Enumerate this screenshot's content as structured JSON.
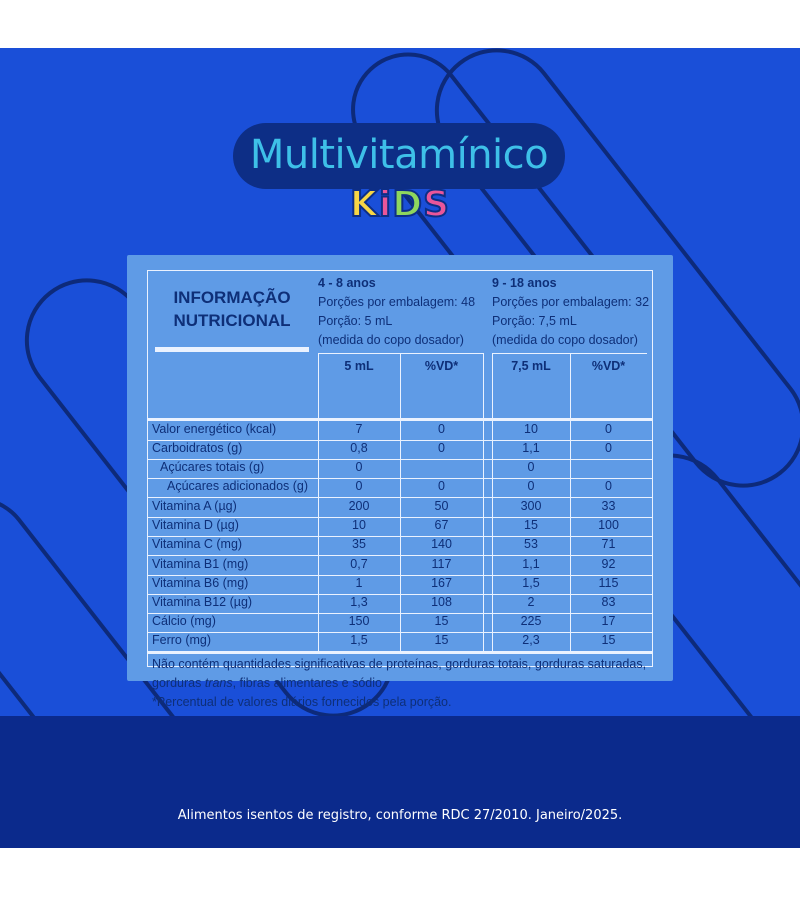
{
  "brand": {
    "title": "Multivitamínico",
    "kids_letters": [
      "K",
      "i",
      "D",
      "S"
    ],
    "kids_colors": [
      "#f7d646",
      "#e9569a",
      "#8ed65e",
      "#e9569a"
    ],
    "title_color": "#3ec0e8"
  },
  "table": {
    "heading_line1": "INFORMAÇÃO",
    "heading_line2": "NUTRICIONAL",
    "group_a": {
      "age": "4 - 8 anos",
      "portions": "Porções por embalagem: 48",
      "portion": "Porção: 5 mL",
      "measure": "(medida do copo dosador)",
      "col1": "5 mL",
      "col2": "%VD*"
    },
    "group_b": {
      "age": "9 - 18 anos",
      "portions": "Porções por embalagem: 32",
      "portion": "Porção: 7,5 mL",
      "measure": "(medida do copo dosador)",
      "col1": "7,5 mL",
      "col2": "%VD*"
    },
    "rows": [
      {
        "label": "Valor energético (kcal)",
        "a1": "7",
        "a2": "0",
        "b1": "10",
        "b2": "0"
      },
      {
        "label": "Carboidratos (g)",
        "a1": "0,8",
        "a2": "0",
        "b1": "1,1",
        "b2": "0"
      },
      {
        "label": "Açúcares totais (g)",
        "a1": "0",
        "a2": "",
        "b1": "0",
        "b2": ""
      },
      {
        "label": "Açúcares adicionados (g)",
        "a1": "0",
        "a2": "0",
        "b1": "0",
        "b2": "0"
      },
      {
        "label": "Vitamina A (µg)",
        "a1": "200",
        "a2": "50",
        "b1": "300",
        "b2": "33"
      },
      {
        "label": "Vitamina D (µg)",
        "a1": "10",
        "a2": "67",
        "b1": "15",
        "b2": "100"
      },
      {
        "label": "Vitamina C (mg)",
        "a1": "35",
        "a2": "140",
        "b1": "53",
        "b2": "71"
      },
      {
        "label": "Vitamina B1 (mg)",
        "a1": "0,7",
        "a2": "117",
        "b1": "1,1",
        "b2": "92"
      },
      {
        "label": "Vitamina B6 (mg)",
        "a1": "1",
        "a2": "167",
        "b1": "1,5",
        "b2": "115"
      },
      {
        "label": "Vitamina B12 (µg)",
        "a1": "1,3",
        "a2": "108",
        "b1": "2",
        "b2": "83"
      },
      {
        "label": "Cálcio (mg)",
        "a1": "150",
        "a2": "15",
        "b1": "225",
        "b2": "17"
      },
      {
        "label": "Ferro (mg)",
        "a1": "1,5",
        "a2": "15",
        "b1": "2,3",
        "b2": "15"
      }
    ],
    "footnote_line1": "Não contém quantidades significativas de proteínas, gorduras totais, gorduras saturadas,",
    "footnote_line2_pre": "gorduras ",
    "footnote_line2_italic": "trans",
    "footnote_line2_post": ", fibras alimentares e sódio.",
    "footnote_line3": "*Percentual de valores diários fornecidos pela porção."
  },
  "footer": {
    "text": "Alimentos isentos de registro, conforme RDC 27/2010. Janeiro/2025."
  }
}
